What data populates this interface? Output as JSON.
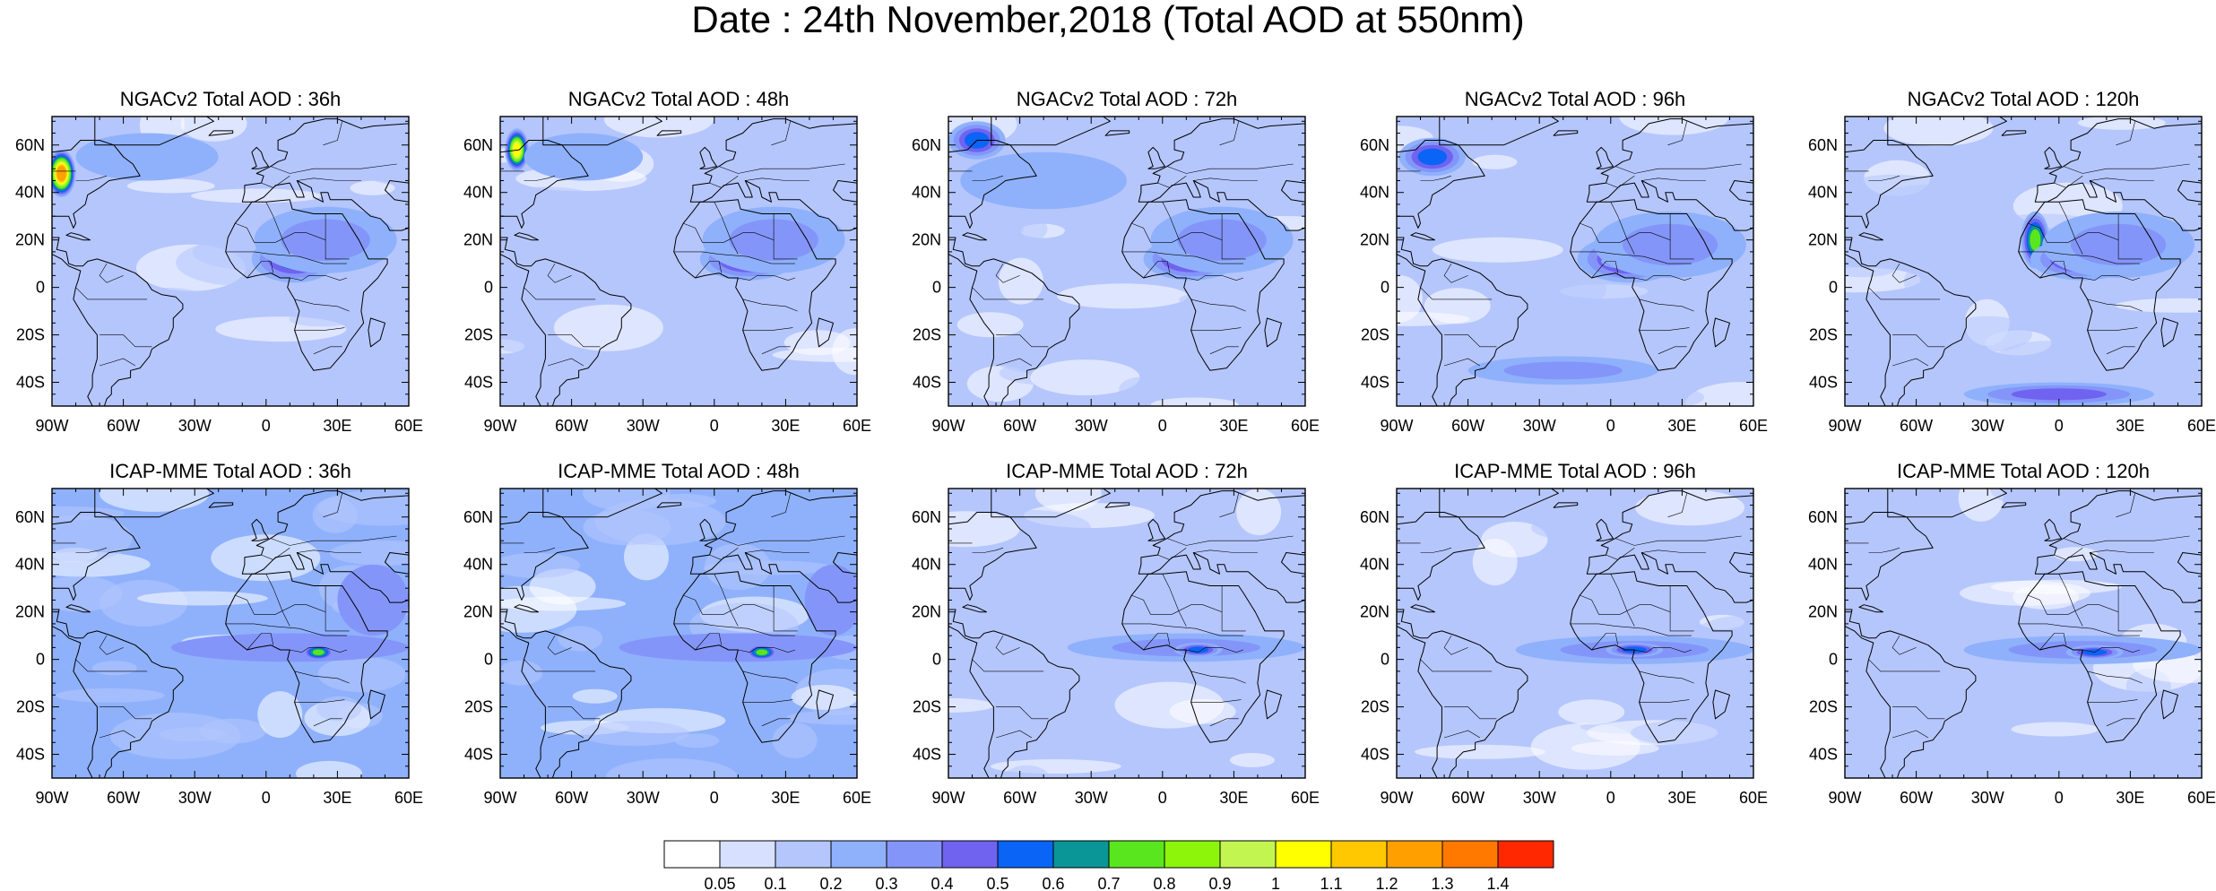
{
  "title": "Date : 24th November,2018 (Total AOD at 550nm)",
  "map_extent": {
    "lon": [
      -90,
      60
    ],
    "lat": [
      -50,
      72
    ]
  },
  "lon_ticks": [
    {
      "value": -90,
      "label": "90W"
    },
    {
      "value": -60,
      "label": "60W"
    },
    {
      "value": -30,
      "label": "30W"
    },
    {
      "value": 0,
      "label": "0"
    },
    {
      "value": 30,
      "label": "30E"
    },
    {
      "value": 60,
      "label": "60E"
    }
  ],
  "lat_ticks": [
    {
      "value": 60,
      "label": "60N"
    },
    {
      "value": 40,
      "label": "40N"
    },
    {
      "value": 20,
      "label": "20N"
    },
    {
      "value": 0,
      "label": "0"
    },
    {
      "value": -20,
      "label": "20S"
    },
    {
      "value": -40,
      "label": "40S"
    }
  ],
  "panels": [
    {
      "row": 0,
      "col": 0,
      "model": "NGACv2",
      "lead": "36h",
      "label": "NGACv2 Total AOD : 36h",
      "background": 0.1,
      "plumes": [
        {
          "lon": -86,
          "lat": 48,
          "rlon": 6,
          "rlat": 10,
          "aod": 1.25
        },
        {
          "lon": 12,
          "lat": 12,
          "rlon": 18,
          "rlat": 10,
          "aod": 0.55
        },
        {
          "lon": 14,
          "lat": 12,
          "rlon": 7,
          "rlat": 4,
          "aod": 0.95
        },
        {
          "lon": 25,
          "lat": 20,
          "rlon": 30,
          "rlat": 14,
          "aod": 0.3
        },
        {
          "lon": -50,
          "lat": 55,
          "rlon": 30,
          "rlat": 10,
          "aod": 0.25
        }
      ]
    },
    {
      "row": 0,
      "col": 1,
      "model": "NGACv2",
      "lead": "48h",
      "label": "NGACv2 Total AOD : 48h",
      "background": 0.1,
      "plumes": [
        {
          "lon": -83,
          "lat": 58,
          "rlon": 5,
          "rlat": 9,
          "aod": 1.0
        },
        {
          "lon": 14,
          "lat": 12,
          "rlon": 20,
          "rlat": 9,
          "aod": 0.55
        },
        {
          "lon": 15,
          "lat": 12,
          "rlon": 8,
          "rlat": 3,
          "aod": 0.9
        },
        {
          "lon": 25,
          "lat": 20,
          "rlon": 30,
          "rlat": 14,
          "aod": 0.3
        },
        {
          "lon": -55,
          "lat": 55,
          "rlon": 25,
          "rlat": 10,
          "aod": 0.25
        }
      ]
    },
    {
      "row": 0,
      "col": 2,
      "model": "NGACv2",
      "lead": "72h",
      "label": "NGACv2 Total AOD : 72h",
      "background": 0.1,
      "plumes": [
        {
          "lon": -78,
          "lat": 62,
          "rlon": 12,
          "rlat": 8,
          "aod": 0.55
        },
        {
          "lon": 12,
          "lat": 12,
          "rlon": 20,
          "rlat": 9,
          "aod": 0.55
        },
        {
          "lon": 13,
          "lat": 11,
          "rlon": 8,
          "rlat": 3,
          "aod": 0.85
        },
        {
          "lon": 25,
          "lat": 20,
          "rlon": 30,
          "rlat": 14,
          "aod": 0.3
        },
        {
          "lon": -50,
          "lat": 45,
          "rlon": 35,
          "rlat": 12,
          "aod": 0.2
        }
      ]
    },
    {
      "row": 0,
      "col": 3,
      "model": "NGACv2",
      "lead": "96h",
      "label": "NGACv2 Total AOD : 96h",
      "background": 0.1,
      "plumes": [
        {
          "lon": -75,
          "lat": 55,
          "rlon": 14,
          "rlat": 8,
          "aod": 0.5
        },
        {
          "lon": 8,
          "lat": 12,
          "rlon": 22,
          "rlat": 10,
          "aod": 0.55
        },
        {
          "lon": 5,
          "lat": 11,
          "rlon": 9,
          "rlat": 3,
          "aod": 0.8
        },
        {
          "lon": 25,
          "lat": 18,
          "rlon": 32,
          "rlat": 14,
          "aod": 0.3
        },
        {
          "lon": -20,
          "lat": -35,
          "rlon": 40,
          "rlat": 6,
          "aod": 0.35
        }
      ]
    },
    {
      "row": 0,
      "col": 3.99,
      "model": "NGACv2",
      "lead": "120h",
      "label": "NGACv2 Total AOD : 120h",
      "background": 0.1,
      "plumes": [
        {
          "lon": -10,
          "lat": 20,
          "rlon": 6,
          "rlat": 12,
          "aod": 0.75
        },
        {
          "lon": 10,
          "lat": 12,
          "rlon": 22,
          "rlat": 9,
          "aod": 0.55
        },
        {
          "lon": 15,
          "lat": 11,
          "rlon": 8,
          "rlat": 3,
          "aod": 0.8
        },
        {
          "lon": 25,
          "lat": 18,
          "rlon": 32,
          "rlat": 14,
          "aod": 0.3
        },
        {
          "lon": 0,
          "lat": -45,
          "rlon": 40,
          "rlat": 5,
          "aod": 0.4
        }
      ]
    },
    {
      "row": 1,
      "col": 0,
      "model": "ICAP-MME",
      "lead": "36h",
      "label": "ICAP-MME Total AOD : 36h",
      "background": 0.2,
      "plumes": [
        {
          "lon": 10,
          "lat": 5,
          "rlon": 50,
          "rlat": 6,
          "aod": 0.3
        },
        {
          "lon": 22,
          "lat": 3,
          "rlon": 6,
          "rlat": 3,
          "aod": 0.7
        },
        {
          "lon": 45,
          "lat": 25,
          "rlon": 15,
          "rlat": 15,
          "aod": 0.3
        }
      ]
    },
    {
      "row": 1,
      "col": 1,
      "model": "ICAP-MME",
      "lead": "48h",
      "label": "ICAP-MME Total AOD : 48h",
      "background": 0.2,
      "plumes": [
        {
          "lon": 10,
          "lat": 5,
          "rlon": 50,
          "rlat": 6,
          "aod": 0.3
        },
        {
          "lon": 20,
          "lat": 3,
          "rlon": 6,
          "rlat": 3,
          "aod": 0.7
        },
        {
          "lon": 50,
          "lat": 25,
          "rlon": 12,
          "rlat": 15,
          "aod": 0.3
        }
      ]
    },
    {
      "row": 1,
      "col": 2,
      "model": "ICAP-MME",
      "lead": "72h",
      "label": "ICAP-MME Total AOD : 72h",
      "background": 0.15,
      "plumes": [
        {
          "lon": 10,
          "lat": 5,
          "rlon": 50,
          "rlat": 6,
          "aod": 0.3
        },
        {
          "lon": 15,
          "lat": 4,
          "rlon": 10,
          "rlat": 3,
          "aod": 0.5
        }
      ]
    },
    {
      "row": 1,
      "col": 3,
      "model": "ICAP-MME",
      "lead": "96h",
      "label": "ICAP-MME Total AOD : 96h",
      "background": 0.15,
      "plumes": [
        {
          "lon": 10,
          "lat": 4,
          "rlon": 50,
          "rlat": 6,
          "aod": 0.3
        },
        {
          "lon": 10,
          "lat": 4,
          "rlon": 12,
          "rlat": 3,
          "aod": 0.5
        }
      ]
    },
    {
      "row": 1,
      "col": 3.99,
      "model": "ICAP-MME",
      "lead": "120h",
      "label": "ICAP-MME Total AOD : 120h",
      "background": 0.15,
      "plumes": [
        {
          "lon": 10,
          "lat": 4,
          "rlon": 50,
          "rlat": 6,
          "aod": 0.3
        },
        {
          "lon": 15,
          "lat": 3,
          "rlon": 12,
          "rlat": 3,
          "aod": 0.5
        }
      ]
    }
  ],
  "colorbar": {
    "levels": [
      0.05,
      0.1,
      0.2,
      0.3,
      0.4,
      0.5,
      0.6,
      0.7,
      0.8,
      0.9,
      1,
      1.1,
      1.2,
      1.3,
      1.4
    ],
    "labels": [
      "0.05",
      "0.1",
      "0.2",
      "0.3",
      "0.4",
      "0.5",
      "0.6",
      "0.7",
      "0.8",
      "0.9",
      "1",
      "1.1",
      "1.2",
      "1.3",
      "1.4"
    ],
    "colors": [
      "#ffffff",
      "#d7e1ff",
      "#b5c6fd",
      "#8fb1fc",
      "#8495fa",
      "#6f63f0",
      "#0a64f5",
      "#0a9696",
      "#5ae61e",
      "#8cf50a",
      "#c3f550",
      "#ffff00",
      "#ffc800",
      "#ffa000",
      "#ff7800",
      "#ff2800"
    ]
  }
}
